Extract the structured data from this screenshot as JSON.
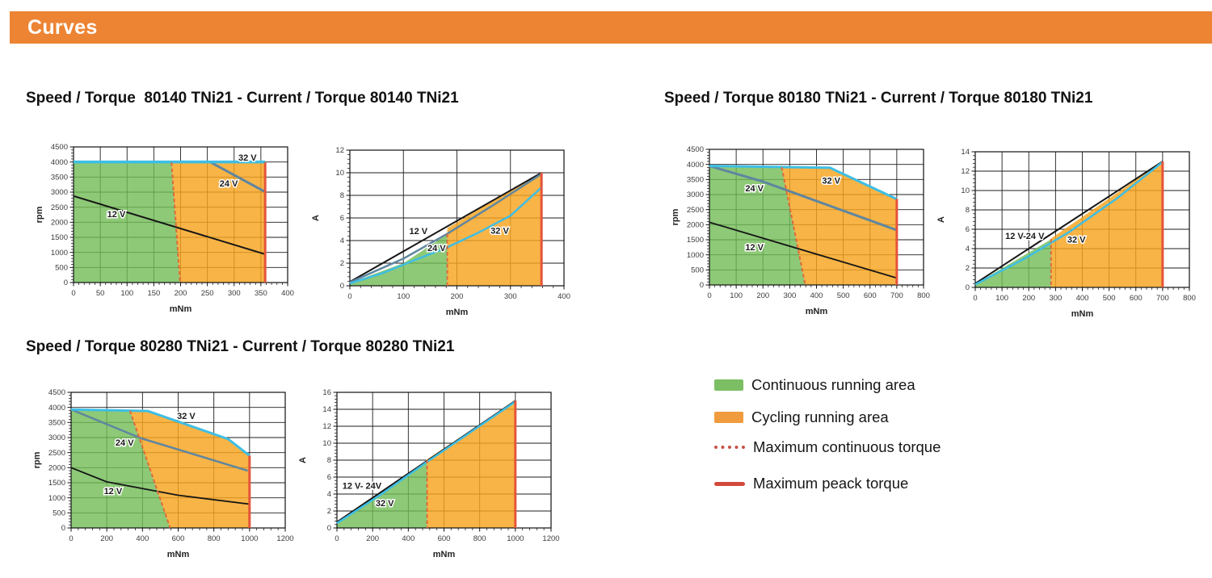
{
  "banner": {
    "title": "Curves",
    "bg_color": "#ED8434"
  },
  "sections": [
    {
      "title": "Speed / Torque  80140 TNi21 - Current / Torque 80140 TNi21"
    },
    {
      "title": "Speed / Torque 80180 TNi21 - Current / Torque 80180 TNi21"
    },
    {
      "title": "Speed / Torque 80280 TNi21 - Current / Torque 80280 TNi21"
    }
  ],
  "legend": {
    "items": [
      {
        "type": "area",
        "color": "#7CBE63",
        "label": "Continuous running area"
      },
      {
        "type": "area",
        "color": "#F09B3D",
        "label": "Cycling running area"
      },
      {
        "type": "dotted-line",
        "color": "#C65247",
        "label": "Maximum continuous torque"
      },
      {
        "type": "solid-line",
        "color": "#D2493D",
        "label": "Maximum peack torque"
      }
    ]
  },
  "colors": {
    "grid": "#1d1d1d",
    "green_fill": "rgba(113,187,85,0.8)",
    "orange_fill": "rgba(247,163,29,0.82)",
    "line_12v": "#161616",
    "line_24v": "#60869F",
    "line_32v": "#3EBEE4",
    "max_continuous": "#DC6A3E",
    "max_peak": "#E5543A"
  },
  "chart_data": [
    {
      "id": "st-80140",
      "type": "area",
      "motor": "80140 TNi21",
      "title": "Speed / Torque 80140 TNi21",
      "xlabel": "mNm",
      "ylabel": "rpm",
      "xlim": [
        0,
        400
      ],
      "xstep": 50,
      "ylim": [
        0,
        4500
      ],
      "ystep": 500,
      "regions": [
        {
          "name": "continuous-running-area",
          "color": "rgba(113,187,85,0.8)",
          "points": [
            [
              0,
              0
            ],
            [
              0,
              3975
            ],
            [
              183,
              3975
            ],
            [
              199,
              0
            ]
          ]
        },
        {
          "name": "cycling-running-area",
          "color": "rgba(247,163,29,0.82)",
          "points": [
            [
              183,
              3975
            ],
            [
              358,
              3975
            ],
            [
              358,
              0
            ],
            [
              199,
              0
            ]
          ]
        }
      ],
      "lines": [
        {
          "name": "12V",
          "color": "#161616",
          "width": 2,
          "points": [
            [
              0,
              2870
            ],
            [
              358,
              940
            ]
          ]
        },
        {
          "name": "24V",
          "color": "#60869F",
          "width": 3,
          "points": [
            [
              255,
              4000
            ],
            [
              358,
              3010
            ]
          ]
        },
        {
          "name": "32V",
          "color": "#3EBEE4",
          "width": 3.5,
          "points": [
            [
              0,
              4000
            ],
            [
              358,
              4000
            ]
          ]
        },
        {
          "name": "max-continuous-torque",
          "color": "#DC6A3E",
          "width": 2,
          "dash": true,
          "points": [
            [
              183,
              3985
            ],
            [
              199,
              0
            ]
          ]
        },
        {
          "name": "max-peak-torque",
          "color": "#E5543A",
          "width": 3,
          "points": [
            [
              358,
              0
            ],
            [
              358,
              3985
            ]
          ]
        }
      ],
      "labels": [
        {
          "text": "12 V",
          "x": 80,
          "y": 2280
        },
        {
          "text": "24 V",
          "x": 290,
          "y": 3290
        },
        {
          "text": "32 V",
          "x": 325,
          "y": 4150
        }
      ]
    },
    {
      "id": "ct-80140",
      "type": "area",
      "motor": "80140 TNi21",
      "title": "Current / Torque 80140 TNi21",
      "xlabel": "mNm",
      "ylabel": "A",
      "xlim": [
        0,
        400
      ],
      "xstep": 100,
      "ylim": [
        0,
        12
      ],
      "ystep": 2,
      "regions": [
        {
          "name": "continuous-running-area",
          "color": "rgba(113,187,85,0.8)",
          "points": [
            [
              0,
              0
            ],
            [
              0,
              0.25
            ],
            [
              100,
              2.0
            ],
            [
              182,
              4.55
            ],
            [
              182,
              0
            ]
          ]
        },
        {
          "name": "cycling-running-area",
          "color": "rgba(247,163,29,0.82)",
          "points": [
            [
              182,
              0
            ],
            [
              182,
              5.1
            ],
            [
              270,
              7.6
            ],
            [
              358,
              10
            ],
            [
              358,
              0
            ]
          ]
        }
      ],
      "lines": [
        {
          "name": "12V",
          "color": "#161616",
          "width": 2,
          "points": [
            [
              0,
              0.35
            ],
            [
              358,
              10
            ]
          ]
        },
        {
          "name": "24V",
          "color": "#60869F",
          "width": 2.5,
          "points": [
            [
              0,
              0.3
            ],
            [
              100,
              2.4
            ],
            [
              182,
              4.6
            ],
            [
              270,
              7.2
            ],
            [
              358,
              9.9
            ]
          ]
        },
        {
          "name": "32V",
          "color": "#3EBEE4",
          "width": 2.5,
          "points": [
            [
              0,
              0.2
            ],
            [
              60,
              1.1
            ],
            [
              120,
              2.25
            ],
            [
              182,
              3.4
            ],
            [
              240,
              4.7
            ],
            [
              300,
              6.2
            ],
            [
              358,
              8.7
            ]
          ]
        },
        {
          "name": "max-continuous-torque",
          "color": "#DC6A3E",
          "width": 2,
          "dash": true,
          "points": [
            [
              182,
              4.6
            ],
            [
              182,
              0
            ]
          ]
        },
        {
          "name": "max-peak-torque",
          "color": "#E5543A",
          "width": 3,
          "points": [
            [
              358,
              0
            ],
            [
              358,
              10
            ]
          ]
        }
      ],
      "labels": [
        {
          "text": "12 V",
          "x": 128,
          "y": 4.85
        },
        {
          "text": "24 V",
          "x": 162,
          "y": 3.35
        },
        {
          "text": "32 V",
          "x": 280,
          "y": 4.9
        }
      ]
    },
    {
      "id": "st-80180",
      "type": "area",
      "motor": "80180 TNi21",
      "title": "Speed / Torque 80180 TNi21",
      "xlabel": "mNm",
      "ylabel": "rpm",
      "xlim": [
        0,
        800
      ],
      "xstep": 100,
      "ylim": [
        0,
        4500
      ],
      "ystep": 500,
      "regions": [
        {
          "name": "continuous-running-area",
          "color": "rgba(113,187,85,0.8)",
          "points": [
            [
              0,
              0
            ],
            [
              0,
              3930
            ],
            [
              270,
              3900
            ],
            [
              358,
              0
            ]
          ]
        },
        {
          "name": "cycling-running-area",
          "color": "rgba(247,163,29,0.82)",
          "points": [
            [
              270,
              3900
            ],
            [
              450,
              3890
            ],
            [
              700,
              2850
            ],
            [
              700,
              0
            ],
            [
              358,
              0
            ]
          ]
        }
      ],
      "lines": [
        {
          "name": "12V",
          "color": "#161616",
          "width": 1.8,
          "points": [
            [
              0,
              2080
            ],
            [
              700,
              230
            ]
          ]
        },
        {
          "name": "24V",
          "color": "#60869F",
          "width": 3,
          "points": [
            [
              0,
              3950
            ],
            [
              200,
              3430
            ],
            [
              700,
              1820
            ]
          ]
        },
        {
          "name": "32V",
          "color": "#3EBEE4",
          "width": 3,
          "points": [
            [
              0,
              3950
            ],
            [
              450,
              3890
            ],
            [
              700,
              2850
            ]
          ]
        },
        {
          "name": "max-continuous-torque",
          "color": "#DC6A3E",
          "width": 2,
          "dash": true,
          "points": [
            [
              270,
              3910
            ],
            [
              358,
              0
            ]
          ]
        },
        {
          "name": "max-peak-torque",
          "color": "#E5543A",
          "width": 3,
          "points": [
            [
              700,
              0
            ],
            [
              700,
              2860
            ]
          ]
        }
      ],
      "labels": [
        {
          "text": "24 V",
          "x": 168,
          "y": 3220
        },
        {
          "text": "32 V",
          "x": 455,
          "y": 3470
        },
        {
          "text": "12 V",
          "x": 168,
          "y": 1260
        }
      ]
    },
    {
      "id": "ct-80180",
      "type": "area",
      "motor": "80180 TNi21",
      "title": "Current / Torque 80180 TNi21",
      "xlabel": "mNm",
      "ylabel": "A",
      "xlim": [
        0,
        800
      ],
      "xstep": 100,
      "ylim": [
        0,
        14
      ],
      "ystep": 2,
      "regions": [
        {
          "name": "continuous-running-area",
          "color": "rgba(113,187,85,0.8)",
          "points": [
            [
              0,
              0
            ],
            [
              0,
              0.35
            ],
            [
              283,
              4.95
            ],
            [
              283,
              0
            ]
          ]
        },
        {
          "name": "cycling-running-area",
          "color": "rgba(247,163,29,0.82)",
          "points": [
            [
              283,
              0
            ],
            [
              283,
              5.05
            ],
            [
              700,
              13
            ],
            [
              700,
              0
            ]
          ]
        }
      ],
      "lines": [
        {
          "name": "12V-24V",
          "color": "#161616",
          "width": 2,
          "points": [
            [
              0,
              0.4
            ],
            [
              700,
              13
            ]
          ]
        },
        {
          "name": "32V",
          "color": "#3EBEE4",
          "width": 2.5,
          "points": [
            [
              0,
              0.3
            ],
            [
              180,
              2.9
            ],
            [
              350,
              5.7
            ],
            [
              530,
              9.2
            ],
            [
              700,
              12.95
            ]
          ]
        },
        {
          "name": "max-continuous-torque",
          "color": "#DC6A3E",
          "width": 2,
          "dash": true,
          "points": [
            [
              283,
              5.0
            ],
            [
              283,
              0
            ]
          ]
        },
        {
          "name": "max-peak-torque",
          "color": "#E5543A",
          "width": 3,
          "points": [
            [
              700,
              0
            ],
            [
              700,
              13
            ]
          ]
        }
      ],
      "labels": [
        {
          "text": "12 V-24 V",
          "x": 185,
          "y": 5.35
        },
        {
          "text": "32 V",
          "x": 378,
          "y": 4.95
        }
      ]
    },
    {
      "id": "st-80280",
      "type": "area",
      "motor": "80280 TNi21",
      "title": "Speed / Torque 80280 TNi21",
      "xlabel": "mNm",
      "ylabel": "rpm",
      "xlim": [
        0,
        1200
      ],
      "xstep": 200,
      "ylim": [
        0,
        4500
      ],
      "ystep": 500,
      "regions": [
        {
          "name": "continuous-running-area",
          "color": "rgba(113,187,85,0.8)",
          "points": [
            [
              0,
              0
            ],
            [
              0,
              3930
            ],
            [
              330,
              3885
            ],
            [
              555,
              0
            ]
          ]
        },
        {
          "name": "cycling-running-area",
          "color": "rgba(247,163,29,0.82)",
          "points": [
            [
              330,
              3885
            ],
            [
              430,
              3880
            ],
            [
              880,
              2950
            ],
            [
              1000,
              2400
            ],
            [
              1000,
              0
            ],
            [
              555,
              0
            ]
          ]
        }
      ],
      "lines": [
        {
          "name": "12V",
          "color": "#161616",
          "width": 1.8,
          "points": [
            [
              0,
              2000
            ],
            [
              200,
              1530
            ],
            [
              600,
              1085
            ],
            [
              1000,
              790
            ]
          ]
        },
        {
          "name": "24V",
          "color": "#60869F",
          "width": 2.5,
          "points": [
            [
              0,
              3930
            ],
            [
              390,
              2980
            ],
            [
              990,
              1900
            ]
          ]
        },
        {
          "name": "32V",
          "color": "#3EBEE4",
          "width": 3,
          "points": [
            [
              0,
              3930
            ],
            [
              430,
              3880
            ],
            [
              880,
              2950
            ],
            [
              1000,
              2400
            ]
          ]
        },
        {
          "name": "max-continuous-torque",
          "color": "#DC6A3E",
          "width": 2,
          "dash": true,
          "points": [
            [
              330,
              3890
            ],
            [
              555,
              0
            ]
          ]
        },
        {
          "name": "max-peak-torque",
          "color": "#E5543A",
          "width": 3,
          "points": [
            [
              1000,
              0
            ],
            [
              1000,
              2400
            ]
          ]
        }
      ],
      "labels": [
        {
          "text": "32 V",
          "x": 645,
          "y": 3720
        },
        {
          "text": "24 V",
          "x": 300,
          "y": 2840
        },
        {
          "text": "12 V",
          "x": 235,
          "y": 1230
        }
      ]
    },
    {
      "id": "ct-80280",
      "type": "area",
      "motor": "80280 TNi21",
      "title": "Current / Torque 80280 TNi21",
      "xlabel": "mNm",
      "ylabel": "A",
      "xlim": [
        0,
        1200
      ],
      "xstep": 200,
      "ylim": [
        0,
        16
      ],
      "ystep": 2,
      "regions": [
        {
          "name": "continuous-running-area",
          "color": "rgba(113,187,85,0.8)",
          "points": [
            [
              0,
              0
            ],
            [
              0,
              0.6
            ],
            [
              505,
              8.0
            ],
            [
              505,
              0
            ]
          ]
        },
        {
          "name": "cycling-running-area",
          "color": "rgba(247,163,29,0.82)",
          "points": [
            [
              505,
              0
            ],
            [
              505,
              8.1
            ],
            [
              1000,
              15
            ],
            [
              1000,
              0
            ]
          ]
        }
      ],
      "lines": [
        {
          "name": "12V-24V",
          "color": "#161616",
          "width": 2,
          "points": [
            [
              0,
              0.7
            ],
            [
              1000,
              15
            ]
          ]
        },
        {
          "name": "32V",
          "color": "#3EBEE4",
          "width": 2.5,
          "points": [
            [
              0,
              0.55
            ],
            [
              250,
              4.0
            ],
            [
              505,
              7.8
            ],
            [
              1000,
              14.9
            ]
          ]
        },
        {
          "name": "max-continuous-torque",
          "color": "#DC6A3E",
          "width": 2,
          "dash": true,
          "points": [
            [
              505,
              8.05
            ],
            [
              505,
              0
            ]
          ]
        },
        {
          "name": "max-peak-torque",
          "color": "#E5543A",
          "width": 3,
          "points": [
            [
              1000,
              0
            ],
            [
              1000,
              15
            ]
          ]
        }
      ],
      "labels": [
        {
          "text": "12 V- 24V",
          "x": 140,
          "y": 5.0
        },
        {
          "text": "32 V",
          "x": 268,
          "y": 2.95
        }
      ]
    }
  ]
}
